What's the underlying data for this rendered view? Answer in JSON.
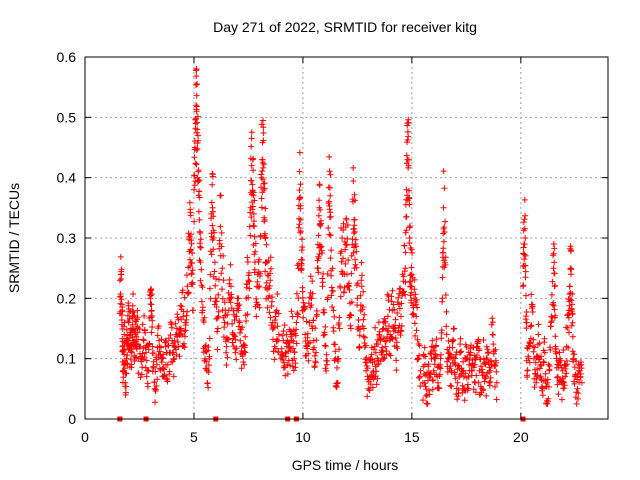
{
  "chart_data": {
    "type": "scatter",
    "title": "Day 271 of 2022, SRMTID for receiver kitg",
    "xlabel": "GPS time / hours",
    "ylabel": "SRMTID / TECUs",
    "xlim": [
      0,
      24
    ],
    "ylim": [
      0,
      0.6
    ],
    "x_ticks": [
      0,
      5,
      10,
      15,
      20
    ],
    "y_ticks": [
      0,
      0.1,
      0.2,
      0.3,
      0.4,
      0.5,
      0.6
    ],
    "x_tick_labels": [
      "0",
      "5",
      "10",
      "15",
      "20"
    ],
    "y_tick_labels": [
      "0",
      "0.1",
      "0.2",
      "0.3",
      "0.4",
      "0.5",
      "0.6"
    ],
    "grid": true,
    "marker": "+",
    "color": "#ff0000",
    "zero_markers_x": [
      1.6,
      2.8,
      6.0,
      9.3,
      9.7,
      20.1
    ],
    "series": [
      {
        "name": "SRMTID",
        "segments": [
          {
            "x_range": [
              1.6,
              2.5
            ],
            "points": [
              [
                1.6,
                0.23
              ],
              [
                1.65,
                0.24
              ],
              [
                1.7,
                0.19
              ],
              [
                1.72,
                0.12
              ],
              [
                1.75,
                0.08
              ],
              [
                1.8,
                0.14
              ],
              [
                1.85,
                0.06
              ],
              [
                1.9,
                0.1
              ],
              [
                1.95,
                0.13
              ],
              [
                2.0,
                0.16
              ],
              [
                2.05,
                0.12
              ],
              [
                2.1,
                0.15
              ],
              [
                2.15,
                0.11
              ],
              [
                2.2,
                0.17
              ],
              [
                2.25,
                0.13
              ],
              [
                2.3,
                0.14
              ],
              [
                2.35,
                0.12
              ],
              [
                2.4,
                0.15
              ],
              [
                2.45,
                0.1
              ]
            ]
          },
          {
            "x_range": [
              2.5,
              5.0
            ],
            "points": [
              [
                2.5,
                0.12
              ],
              [
                2.6,
                0.1
              ],
              [
                2.7,
                0.13
              ],
              [
                2.8,
                0.11
              ],
              [
                2.9,
                0.08
              ],
              [
                3.0,
                0.2
              ],
              [
                3.05,
                0.19
              ],
              [
                3.1,
                0.12
              ],
              [
                3.2,
                0.05
              ],
              [
                3.3,
                0.09
              ],
              [
                3.4,
                0.13
              ],
              [
                3.5,
                0.1
              ],
              [
                3.6,
                0.07
              ],
              [
                3.7,
                0.12
              ],
              [
                3.8,
                0.09
              ],
              [
                3.9,
                0.11
              ],
              [
                4.0,
                0.13
              ],
              [
                4.1,
                0.1
              ],
              [
                4.2,
                0.14
              ],
              [
                4.3,
                0.12
              ],
              [
                4.4,
                0.15
              ],
              [
                4.5,
                0.17
              ],
              [
                4.6,
                0.16
              ],
              [
                4.7,
                0.22
              ],
              [
                4.8,
                0.3
              ],
              [
                4.85,
                0.28
              ],
              [
                4.9,
                0.24
              ],
              [
                4.95,
                0.18
              ]
            ]
          },
          {
            "x_range": [
              5.0,
              9.0
            ],
            "points": [
              [
                5.0,
                0.38
              ],
              [
                5.05,
                0.45
              ],
              [
                5.1,
                0.52
              ],
              [
                5.12,
                0.51
              ],
              [
                5.15,
                0.48
              ],
              [
                5.2,
                0.41
              ],
              [
                5.25,
                0.33
              ],
              [
                5.3,
                0.26
              ],
              [
                5.4,
                0.18
              ],
              [
                5.5,
                0.12
              ],
              [
                5.6,
                0.08
              ],
              [
                5.7,
                0.1
              ],
              [
                5.8,
                0.34
              ],
              [
                5.85,
                0.35
              ],
              [
                5.9,
                0.3
              ],
              [
                6.0,
                0.2
              ],
              [
                6.1,
                0.15
              ],
              [
                6.2,
                0.37
              ],
              [
                6.3,
                0.25
              ],
              [
                6.4,
                0.16
              ],
              [
                6.5,
                0.12
              ],
              [
                6.6,
                0.18
              ],
              [
                6.7,
                0.22
              ],
              [
                6.8,
                0.14
              ],
              [
                6.9,
                0.11
              ],
              [
                7.0,
                0.2
              ],
              [
                7.1,
                0.16
              ],
              [
                7.2,
                0.12
              ],
              [
                7.3,
                0.09
              ],
              [
                7.4,
                0.2
              ],
              [
                7.5,
                0.23
              ],
              [
                7.6,
                0.35
              ],
              [
                7.65,
                0.42
              ],
              [
                7.7,
                0.43
              ],
              [
                7.75,
                0.34
              ],
              [
                7.8,
                0.26
              ],
              [
                7.9,
                0.19
              ],
              [
                8.0,
                0.22
              ],
              [
                8.1,
                0.4
              ],
              [
                8.15,
                0.43
              ],
              [
                8.2,
                0.39
              ],
              [
                8.25,
                0.33
              ],
              [
                8.3,
                0.26
              ],
              [
                8.4,
                0.2
              ],
              [
                8.5,
                0.23
              ],
              [
                8.6,
                0.16
              ],
              [
                8.7,
                0.12
              ],
              [
                8.8,
                0.18
              ],
              [
                8.9,
                0.14
              ]
            ]
          },
          {
            "x_range": [
              9.0,
              15.5
            ],
            "points": [
              [
                9.0,
                0.1
              ],
              [
                9.1,
                0.13
              ],
              [
                9.2,
                0.11
              ],
              [
                9.3,
                0.09
              ],
              [
                9.4,
                0.12
              ],
              [
                9.5,
                0.14
              ],
              [
                9.6,
                0.1
              ],
              [
                9.7,
                0.16
              ],
              [
                9.8,
                0.25
              ],
              [
                9.85,
                0.41
              ],
              [
                9.9,
                0.33
              ],
              [
                9.95,
                0.28
              ],
              [
                10.0,
                0.18
              ],
              [
                10.1,
                0.14
              ],
              [
                10.2,
                0.12
              ],
              [
                10.3,
                0.16
              ],
              [
                10.4,
                0.2
              ],
              [
                10.5,
                0.13
              ],
              [
                10.6,
                0.11
              ],
              [
                10.7,
                0.25
              ],
              [
                10.75,
                0.35
              ],
              [
                10.8,
                0.32
              ],
              [
                10.9,
                0.22
              ],
              [
                11.0,
                0.14
              ],
              [
                11.1,
                0.09
              ],
              [
                11.2,
                0.36
              ],
              [
                11.25,
                0.37
              ],
              [
                11.3,
                0.28
              ],
              [
                11.4,
                0.18
              ],
              [
                11.5,
                0.1
              ],
              [
                11.6,
                0.06
              ],
              [
                11.7,
                0.22
              ],
              [
                11.8,
                0.3
              ],
              [
                11.9,
                0.24
              ],
              [
                12.0,
                0.33
              ],
              [
                12.1,
                0.22
              ],
              [
                12.2,
                0.15
              ],
              [
                12.3,
                0.36
              ],
              [
                12.35,
                0.33
              ],
              [
                12.4,
                0.29
              ],
              [
                12.5,
                0.2
              ],
              [
                12.6,
                0.12
              ],
              [
                12.7,
                0.22
              ],
              [
                12.8,
                0.15
              ],
              [
                12.9,
                0.08
              ],
              [
                13.0,
                0.05
              ],
              [
                13.1,
                0.1
              ],
              [
                13.2,
                0.07
              ],
              [
                13.3,
                0.12
              ],
              [
                13.4,
                0.09
              ],
              [
                13.5,
                0.14
              ],
              [
                13.6,
                0.11
              ],
              [
                13.7,
                0.15
              ],
              [
                13.8,
                0.12
              ],
              [
                13.9,
                0.17
              ],
              [
                14.0,
                0.14
              ],
              [
                14.1,
                0.18
              ],
              [
                14.2,
                0.15
              ],
              [
                14.3,
                0.12
              ],
              [
                14.4,
                0.19
              ],
              [
                14.5,
                0.17
              ],
              [
                14.6,
                0.21
              ],
              [
                14.7,
                0.25
              ],
              [
                14.75,
                0.38
              ],
              [
                14.8,
                0.43
              ],
              [
                14.85,
                0.42
              ],
              [
                14.9,
                0.3
              ],
              [
                14.95,
                0.22
              ],
              [
                15.0,
                0.24
              ],
              [
                15.1,
                0.2
              ],
              [
                15.2,
                0.17
              ],
              [
                15.3,
                0.1
              ],
              [
                15.4,
                0.08
              ]
            ]
          },
          {
            "x_range": [
              15.5,
              19.0
            ],
            "points": [
              [
                15.5,
                0.06
              ],
              [
                15.6,
                0.09
              ],
              [
                15.7,
                0.04
              ],
              [
                15.8,
                0.07
              ],
              [
                15.9,
                0.1
              ],
              [
                16.0,
                0.08
              ],
              [
                16.1,
                0.12
              ],
              [
                16.2,
                0.06
              ],
              [
                16.3,
                0.09
              ],
              [
                16.4,
                0.2
              ],
              [
                16.45,
                0.35
              ],
              [
                16.5,
                0.31
              ],
              [
                16.6,
                0.14
              ],
              [
                16.7,
                0.1
              ],
              [
                16.8,
                0.08
              ],
              [
                16.9,
                0.13
              ],
              [
                17.0,
                0.09
              ],
              [
                17.1,
                0.06
              ],
              [
                17.2,
                0.11
              ],
              [
                17.3,
                0.08
              ],
              [
                17.4,
                0.05
              ],
              [
                17.5,
                0.1
              ],
              [
                17.6,
                0.07
              ],
              [
                17.7,
                0.11
              ],
              [
                17.8,
                0.09
              ],
              [
                17.9,
                0.06
              ],
              [
                18.0,
                0.12
              ],
              [
                18.1,
                0.08
              ],
              [
                18.2,
                0.05
              ],
              [
                18.3,
                0.1
              ],
              [
                18.4,
                0.07
              ],
              [
                18.5,
                0.11
              ],
              [
                18.6,
                0.08
              ],
              [
                18.7,
                0.14
              ],
              [
                18.8,
                0.09
              ],
              [
                18.9,
                0.06
              ]
            ]
          },
          {
            "x_range": [
              20.1,
              22.8
            ],
            "points": [
              [
                20.1,
                0.22
              ],
              [
                20.15,
                0.29
              ],
              [
                20.2,
                0.3
              ],
              [
                20.25,
                0.16
              ],
              [
                20.3,
                0.08
              ],
              [
                20.4,
                0.12
              ],
              [
                20.5,
                0.19
              ],
              [
                20.6,
                0.1
              ],
              [
                20.7,
                0.06
              ],
              [
                20.8,
                0.14
              ],
              [
                20.9,
                0.09
              ],
              [
                21.0,
                0.05
              ],
              [
                21.1,
                0.11
              ],
              [
                21.2,
                0.03
              ],
              [
                21.3,
                0.08
              ],
              [
                21.4,
                0.17
              ],
              [
                21.5,
                0.25
              ],
              [
                21.55,
                0.22
              ],
              [
                21.6,
                0.12
              ],
              [
                21.7,
                0.07
              ],
              [
                21.8,
                0.1
              ],
              [
                21.9,
                0.06
              ],
              [
                22.0,
                0.09
              ],
              [
                22.1,
                0.12
              ],
              [
                22.2,
                0.18
              ],
              [
                22.25,
                0.22
              ],
              [
                22.3,
                0.24
              ],
              [
                22.35,
                0.19
              ],
              [
                22.4,
                0.1
              ],
              [
                22.5,
                0.07
              ],
              [
                22.6,
                0.05
              ],
              [
                22.7,
                0.08
              ],
              [
                22.8,
                0.06
              ]
            ]
          }
        ]
      }
    ]
  }
}
